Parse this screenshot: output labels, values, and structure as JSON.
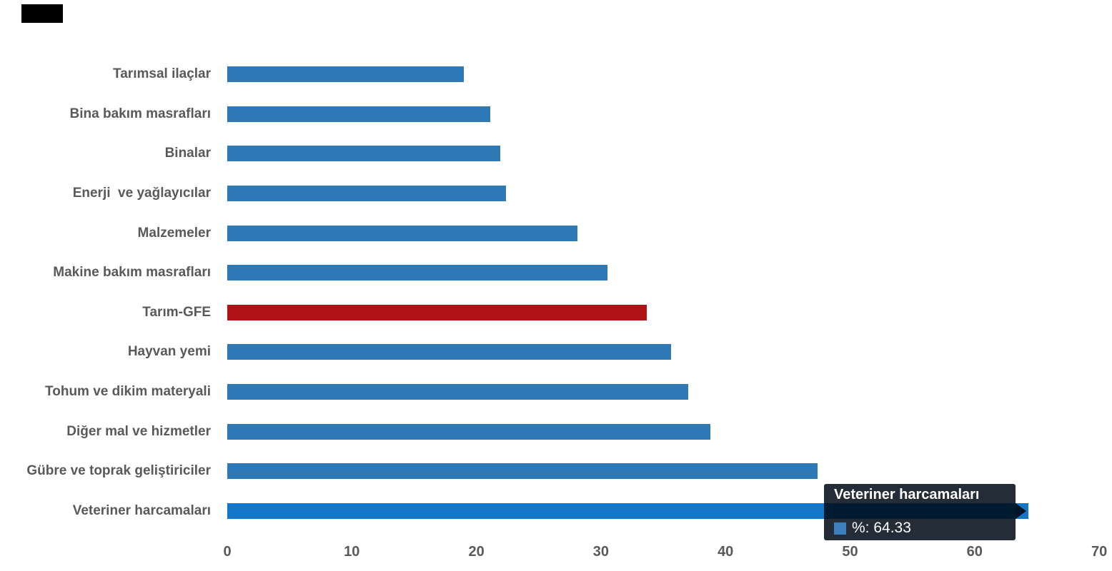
{
  "chart_data": {
    "type": "bar",
    "orientation": "horizontal",
    "title": "",
    "xlabel": "",
    "ylabel": "",
    "series_name": "%",
    "categories": [
      "Tarımsal ilaçlar",
      "Bina bakım masrafları",
      "Binalar",
      "Enerji  ve yağlayıcılar",
      "Malzemeler",
      "Makine bakım masrafları",
      "Tarım-GFE",
      "Hayvan yemi",
      "Tohum ve dikim materyali",
      "Diğer mal ve hizmetler",
      "Gübre ve toprak geliştiriciler",
      "Veteriner harcamaları"
    ],
    "values": [
      19.0,
      21.1,
      21.9,
      22.4,
      28.1,
      30.5,
      33.7,
      35.6,
      37.0,
      38.8,
      47.4,
      64.33
    ],
    "bar_colors": [
      "#2E79B5",
      "#2E79B5",
      "#2E79B5",
      "#2E79B5",
      "#2E79B5",
      "#2E79B5",
      "#B01218",
      "#2E79B5",
      "#2E79B5",
      "#2E79B5",
      "#2E79B5",
      "#1476C6"
    ],
    "highlight_category": "Tarım-GFE",
    "highlight_color": "#B01218",
    "hovered_category": "Veteriner harcamaları",
    "xlim": [
      0,
      70
    ],
    "x_ticks": [
      "0",
      "10",
      "20",
      "30",
      "40",
      "50",
      "60",
      "70"
    ],
    "grid": false,
    "legend": "none",
    "label_color": "#595959"
  },
  "tooltip": {
    "title": "Veteriner harcamaları",
    "value_label": "%: 64.33",
    "marker_color": "#3D80BE",
    "background_color": "rgba(0,10,22,0.86)"
  },
  "decorations": {
    "top_left_block_color": "#000000"
  }
}
